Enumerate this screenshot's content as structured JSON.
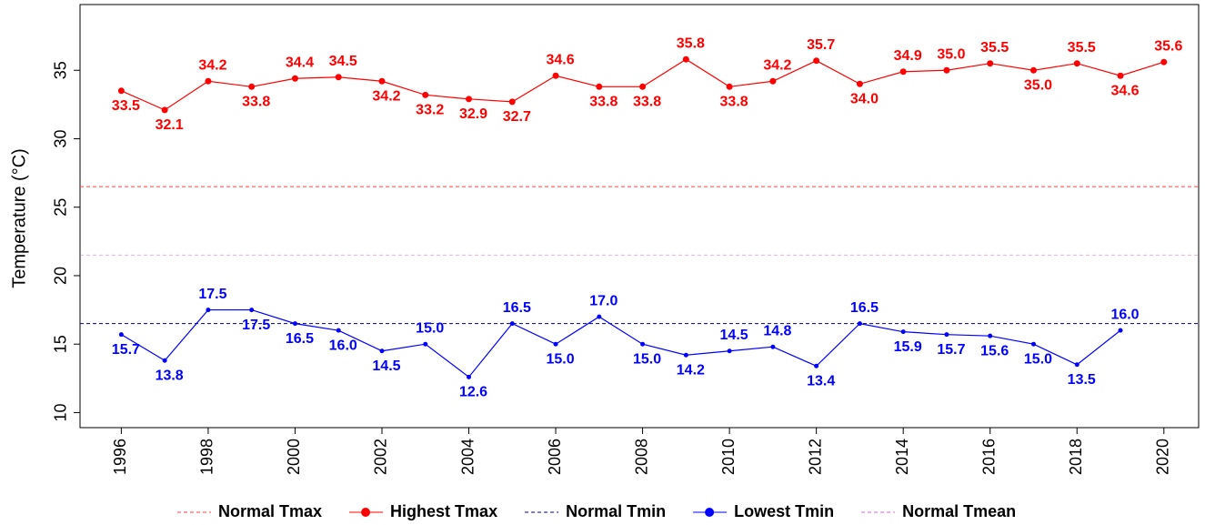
{
  "chart_data": {
    "type": "line",
    "ylabel": "Temperature (°C)",
    "x": [
      1996,
      1997,
      1998,
      1999,
      2000,
      2001,
      2002,
      2003,
      2004,
      2005,
      2006,
      2007,
      2008,
      2009,
      2010,
      2011,
      2012,
      2013,
      2014,
      2015,
      2016,
      2017,
      2018,
      2019,
      2020
    ],
    "series": [
      {
        "name": "Highest Tmax",
        "color": "#ff0000",
        "values": [
          33.5,
          32.1,
          34.2,
          33.8,
          34.4,
          34.5,
          34.2,
          33.2,
          32.9,
          32.7,
          34.6,
          33.8,
          33.8,
          35.8,
          33.8,
          34.2,
          35.7,
          34.0,
          34.9,
          35.0,
          35.5,
          35.0,
          35.5,
          34.6,
          35.6
        ],
        "value_labels": [
          "33.5",
          "32.1",
          "34.2",
          "33.8",
          "34.4",
          "34.5",
          "34.2",
          "33.2",
          "32.9",
          "32.7",
          "34.6",
          "33.8",
          "33.8",
          "35.8",
          "33.8",
          "34.2",
          "35.7",
          "34.0",
          "34.9",
          "35.0",
          "35.5",
          "35.0",
          "35.5",
          "34.6",
          "35.6"
        ]
      },
      {
        "name": "Lowest Tmin",
        "color": "#0000ff",
        "values": [
          15.7,
          13.8,
          17.5,
          17.5,
          16.5,
          16.0,
          14.5,
          15.0,
          12.6,
          16.5,
          15.0,
          17.0,
          15.0,
          14.2,
          14.5,
          14.8,
          13.4,
          16.5,
          15.9,
          15.7,
          15.6,
          15.0,
          13.5,
          16.0,
          null
        ],
        "value_labels": [
          "15.7",
          "13.8",
          "17.5",
          "17.5",
          "16.5",
          "16.0",
          "14.5",
          "15.0",
          "12.6",
          "16.5",
          "15.0",
          "17.0",
          "15.0",
          "14.2",
          "14.5",
          "14.8",
          "13.4",
          "16.5",
          "15.9",
          "15.7",
          "15.6",
          "15.0",
          "13.5",
          "16.0",
          null
        ]
      }
    ],
    "reference_lines": [
      {
        "name": "Normal Tmax",
        "color": "#ff4040",
        "value": 26.5
      },
      {
        "name": "Normal Tmin",
        "color": "#000080",
        "value": 16.5
      },
      {
        "name": "Normal Tmean",
        "color": "#cc66cc",
        "value": 21.5
      }
    ],
    "xlim": [
      1995.05,
      2020.8
    ],
    "xticks": [
      1996,
      1998,
      2000,
      2002,
      2004,
      2006,
      2008,
      2010,
      2012,
      2014,
      2016,
      2018,
      2020
    ],
    "ylim": [
      8.9,
      39.8
    ],
    "yticks": [
      10,
      15,
      20,
      25,
      30,
      35
    ]
  }
}
